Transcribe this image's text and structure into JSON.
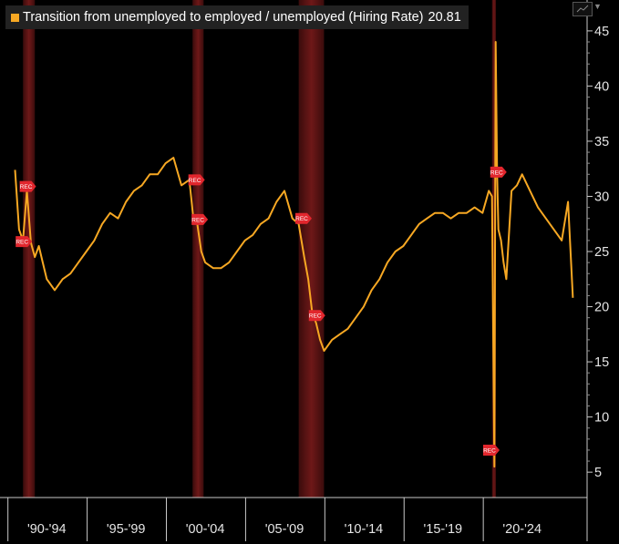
{
  "chart_data": {
    "type": "line",
    "title": "",
    "xlabel": "",
    "ylabel": "",
    "series": [
      {
        "name": "Transition from unemployed to employed / unemployed (Hiring Rate)",
        "last_value": "20.81",
        "color": "#f7a823",
        "x": [
          1990.0,
          1990.25,
          1990.5,
          1990.75,
          1991.0,
          1991.25,
          1991.5,
          1991.75,
          1992.0,
          1992.5,
          1993.0,
          1993.5,
          1994.0,
          1994.5,
          1995.0,
          1995.5,
          1996.0,
          1996.5,
          1997.0,
          1997.5,
          1998.0,
          1998.5,
          1999.0,
          1999.5,
          2000.0,
          2000.5,
          2001.0,
          2001.25,
          2001.5,
          2001.75,
          2002.0,
          2002.5,
          2003.0,
          2003.5,
          2004.0,
          2004.5,
          2005.0,
          2005.5,
          2006.0,
          2006.5,
          2007.0,
          2007.5,
          2007.9,
          2008.25,
          2008.5,
          2008.75,
          2009.0,
          2009.25,
          2009.5,
          2010.0,
          2010.5,
          2011.0,
          2011.5,
          2012.0,
          2012.5,
          2013.0,
          2013.5,
          2014.0,
          2014.5,
          2015.0,
          2015.5,
          2016.0,
          2016.5,
          2017.0,
          2017.5,
          2018.0,
          2018.5,
          2019.0,
          2019.5,
          2019.9,
          2020.1,
          2020.25,
          2020.33,
          2020.42,
          2020.5,
          2020.67,
          2020.83,
          2021.0,
          2021.33,
          2021.67,
          2022.0,
          2022.5,
          2023.0,
          2023.5,
          2024.0,
          2024.5,
          2024.9,
          2025.2
        ],
        "y": [
          32.4,
          27.0,
          26.0,
          30.5,
          25.8,
          24.5,
          25.5,
          24.0,
          22.5,
          21.5,
          22.5,
          23.0,
          24.0,
          25.0,
          26.0,
          27.5,
          28.5,
          28.0,
          29.5,
          30.5,
          31.0,
          32.0,
          32.0,
          33.0,
          33.5,
          31.0,
          31.5,
          28.0,
          27.5,
          25.0,
          24.0,
          23.5,
          23.5,
          24.0,
          25.0,
          26.0,
          26.5,
          27.5,
          28.0,
          29.5,
          30.5,
          28.0,
          27.5,
          24.5,
          22.5,
          19.5,
          18.5,
          17.0,
          16.0,
          17.0,
          17.5,
          18.0,
          19.0,
          20.0,
          21.5,
          22.5,
          24.0,
          25.0,
          25.5,
          26.5,
          27.5,
          28.0,
          28.5,
          28.5,
          28.0,
          28.5,
          28.5,
          29.0,
          28.5,
          30.5,
          30.0,
          5.5,
          44.0,
          32.0,
          27.0,
          26.0,
          24.0,
          22.5,
          30.5,
          31.0,
          32.0,
          30.5,
          29.0,
          28.0,
          27.0,
          26.0,
          29.5,
          20.81
        ]
      }
    ],
    "recessions": [
      [
        1990.5,
        1991.25
      ],
      [
        2001.2,
        2001.9
      ],
      [
        2007.9,
        2009.5
      ],
      [
        2020.1,
        2020.35
      ]
    ],
    "rec_markers": [
      {
        "label": "REC",
        "x": 1990.75,
        "y": 30.9
      },
      {
        "label": "REC",
        "x": 1990.5,
        "y": 25.9
      },
      {
        "label": "REC",
        "x": 2001.4,
        "y": 31.5
      },
      {
        "label": "REC",
        "x": 2001.6,
        "y": 27.9
      },
      {
        "label": "REC",
        "x": 2008.15,
        "y": 28.0
      },
      {
        "label": "REC",
        "x": 2009.0,
        "y": 19.2
      },
      {
        "label": "REC",
        "x": 2020.0,
        "y": 7.0
      },
      {
        "label": "REC",
        "x": 2020.45,
        "y": 32.2
      }
    ],
    "xlim": [
      1989.05,
      2026.1
    ],
    "ylim": [
      2.7,
      47.8
    ],
    "y_ticks": [
      5,
      10,
      15,
      20,
      25,
      30,
      35,
      40,
      45
    ],
    "x_labels": [
      {
        "label": "'90-'94",
        "x": 1992.0
      },
      {
        "label": "'95-'99",
        "x": 1997.0
      },
      {
        "label": "'00-'04",
        "x": 2002.0
      },
      {
        "label": "'05-'09",
        "x": 2007.0
      },
      {
        "label": "'10-'14",
        "x": 2012.0
      },
      {
        "label": "'15-'19",
        "x": 2017.0
      },
      {
        "label": "'20-'24",
        "x": 2022.0
      }
    ],
    "x_separators": [
      1989.55,
      1994.55,
      1999.55,
      2004.55,
      2009.55,
      2014.55,
      2019.55
    ],
    "last_value_label": "20.81"
  }
}
